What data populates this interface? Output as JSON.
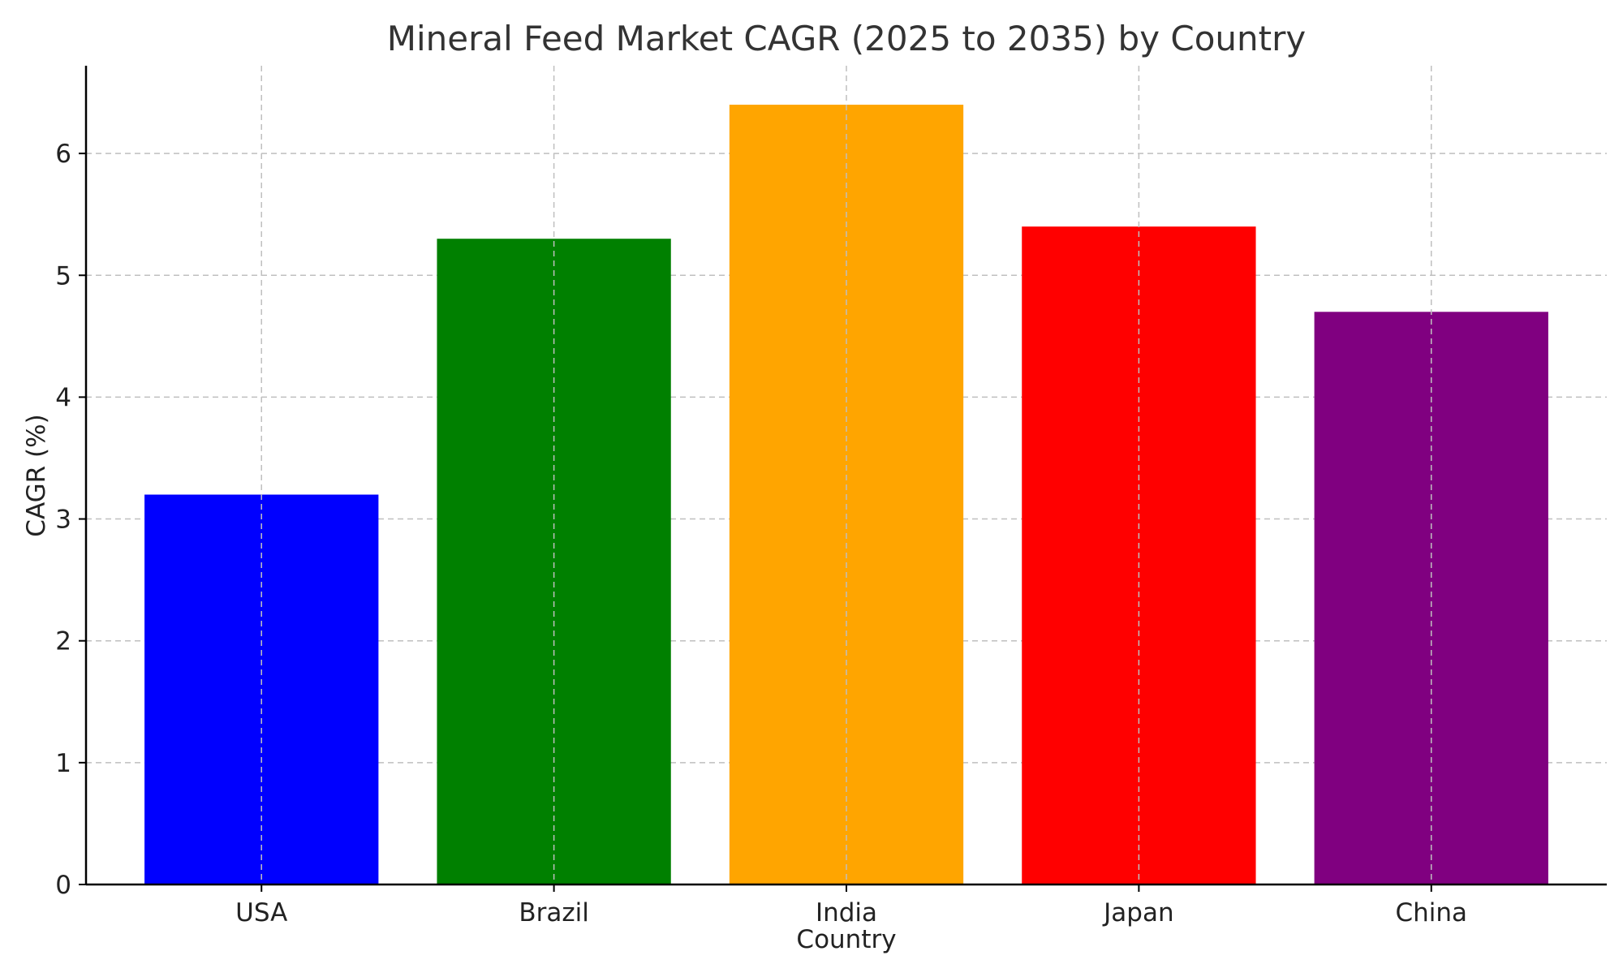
{
  "chart_data": {
    "type": "bar",
    "title": "Mineral Feed Market CAGR (2025 to 2035) by Country",
    "xlabel": "Country",
    "ylabel": "CAGR (%)",
    "categories": [
      "USA",
      "Brazil",
      "India",
      "Japan",
      "China"
    ],
    "values": [
      3.2,
      5.3,
      6.4,
      5.4,
      4.7
    ],
    "colors": [
      "#0000ff",
      "#008000",
      "#ffa500",
      "#ff0000",
      "#800080"
    ],
    "ylim": [
      0,
      6.72
    ],
    "yticks": [
      0,
      1,
      2,
      3,
      4,
      5,
      6
    ],
    "grid": true,
    "legend": "none"
  }
}
